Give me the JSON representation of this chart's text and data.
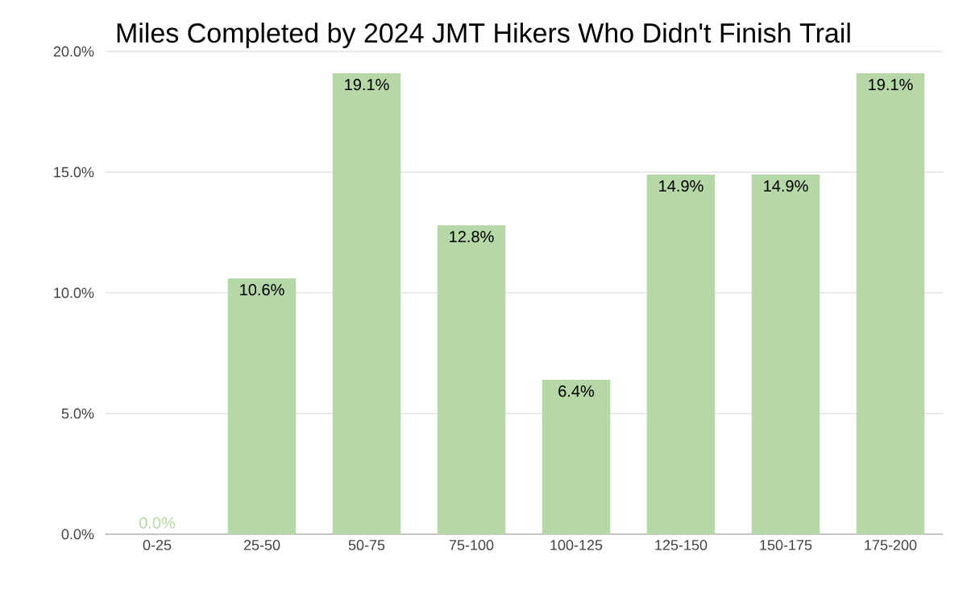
{
  "chart_data": {
    "type": "bar",
    "title": "Miles Completed by 2024 JMT Hikers Who Didn't Finish Trail",
    "categories": [
      "0-25",
      "25-50",
      "50-75",
      "75-100",
      "100-125",
      "125-150",
      "150-175",
      "175-200"
    ],
    "values": [
      0,
      10.6,
      19.1,
      12.8,
      6.4,
      14.9,
      14.9,
      19.1
    ],
    "value_labels": [
      "0.0%",
      "10.6%",
      "19.1%",
      "12.8%",
      "6.4%",
      "14.9%",
      "14.9%",
      "19.1%"
    ],
    "color": "#b6d7a8",
    "ylim": [
      0,
      20
    ],
    "yticks": [
      {
        "value": 0,
        "label": "0.0%"
      },
      {
        "value": 5,
        "label": "5.0%"
      },
      {
        "value": 10,
        "label": "10.0%"
      },
      {
        "value": 15,
        "label": "15.0%"
      },
      {
        "value": 20,
        "label": "20.0%"
      }
    ],
    "grid": "y"
  }
}
